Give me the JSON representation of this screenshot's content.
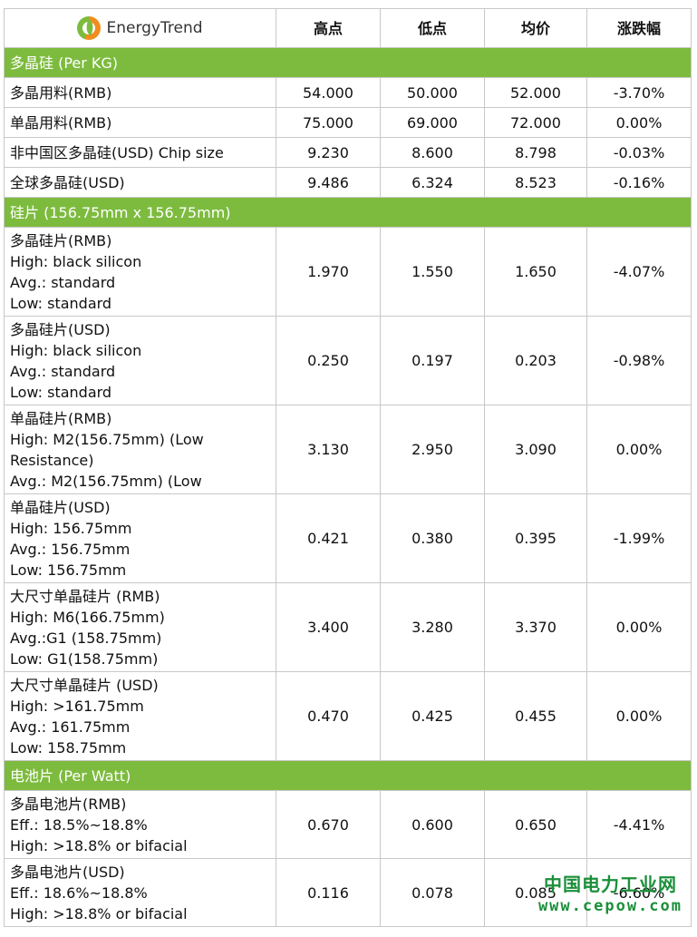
{
  "header": {
    "logo_text": "EnergyTrend",
    "columns": [
      "高点",
      "低点",
      "均价",
      "涨跌幅"
    ]
  },
  "sections": [
    {
      "title": "多晶硅 (Per KG)",
      "rows": [
        {
          "name": "多晶用料(RMB)",
          "high": "54.000",
          "low": "50.000",
          "avg": "52.000",
          "change": "-3.70%"
        },
        {
          "name": "单晶用料(RMB)",
          "high": "75.000",
          "low": "69.000",
          "avg": "72.000",
          "change": "0.00%"
        },
        {
          "name": "非中国区多晶硅(USD) Chip size",
          "high": "9.230",
          "low": "8.600",
          "avg": "8.798",
          "change": "-0.03%"
        },
        {
          "name": "全球多晶硅(USD)",
          "high": "9.486",
          "low": "6.324",
          "avg": "8.523",
          "change": "-0.16%"
        }
      ]
    },
    {
      "title": "硅片 (156.75mm x 156.75mm)",
      "rows": [
        {
          "name": "多晶硅片(RMB)\nHigh: black silicon\nAvg.: standard\nLow: standard",
          "high": "1.970",
          "low": "1.550",
          "avg": "1.650",
          "change": "-4.07%"
        },
        {
          "name": "多晶硅片(USD)\nHigh: black silicon\nAvg.: standard\nLow: standard",
          "high": "0.250",
          "low": "0.197",
          "avg": "0.203",
          "change": "-0.98%"
        },
        {
          "name": "单晶硅片(RMB)\nHigh: M2(156.75mm) (Low Resistance)\nAvg.: M2(156.75mm) (Low",
          "high": "3.130",
          "low": "2.950",
          "avg": "3.090",
          "change": "0.00%"
        },
        {
          "name": "单晶硅片(USD)\nHigh: 156.75mm\nAvg.: 156.75mm\nLow: 156.75mm",
          "high": "0.421",
          "low": "0.380",
          "avg": "0.395",
          "change": "-1.99%"
        },
        {
          "name": "大尺寸单晶硅片 (RMB)\nHigh: M6(166.75mm)\nAvg.:G1 (158.75mm)\nLow: G1(158.75mm)",
          "high": "3.400",
          "low": "3.280",
          "avg": "3.370",
          "change": "0.00%"
        },
        {
          "name": "大尺寸单晶硅片 (USD)\nHigh: >161.75mm\nAvg.: 161.75mm\nLow: 158.75mm",
          "high": "0.470",
          "low": "0.425",
          "avg": "0.455",
          "change": "0.00%"
        }
      ]
    },
    {
      "title": "电池片 (Per Watt)",
      "rows": [
        {
          "name": "多晶电池片(RMB)\nEff.: 18.5%~18.8%\nHigh: >18.8% or bifacial",
          "high": "0.670",
          "low": "0.600",
          "avg": "0.650",
          "change": "-4.41%"
        },
        {
          "name": "多晶电池片(USD)\nEff.: 18.6%~18.8%\nHigh: >18.8% or bifacial",
          "high": "0.116",
          "low": "0.078",
          "avg": "0.085",
          "change": "-6.60%"
        }
      ]
    }
  ],
  "watermark": {
    "line1": "中国电力工业网",
    "line2": "www.cepow.com"
  },
  "colors": {
    "section_bg": "#7dbb3e",
    "logo_orange": "#f28c1c",
    "watermark": "#1b8f3a"
  }
}
